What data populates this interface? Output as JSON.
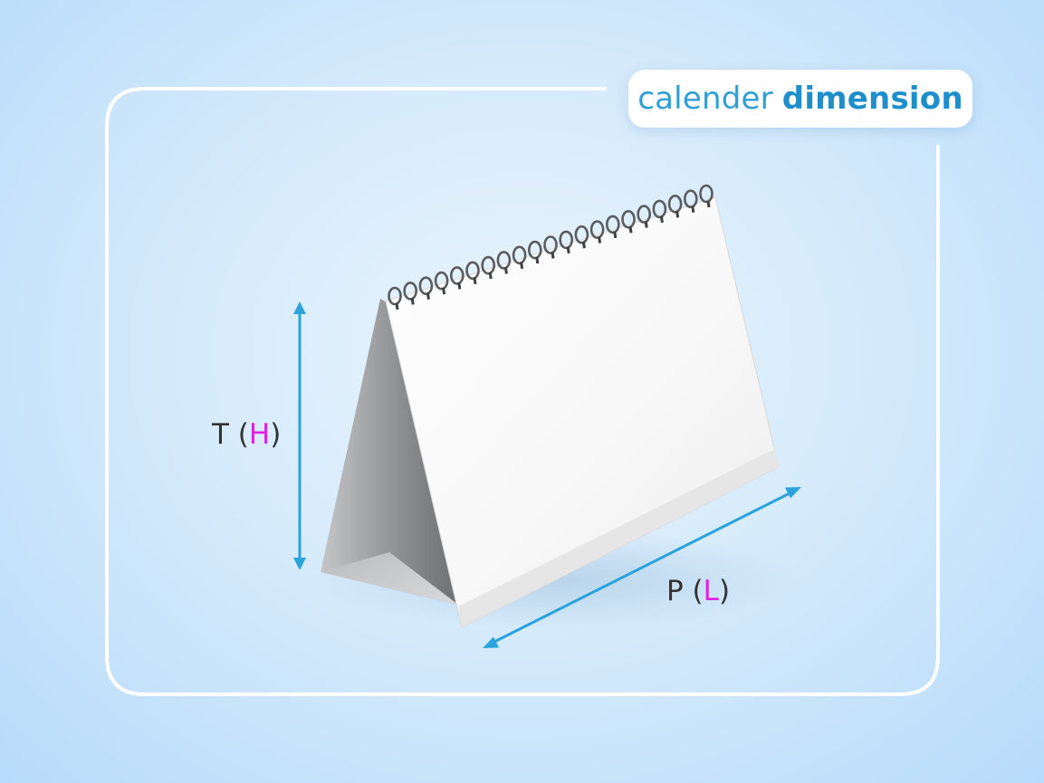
{
  "title": {
    "light": "calender",
    "bold": "dimension"
  },
  "dimensions": {
    "height": {
      "prefix": "T (",
      "letter": "H",
      "suffix": ")"
    },
    "length": {
      "prefix": "P (",
      "letter": "L",
      "suffix": ")"
    }
  },
  "colors": {
    "arrow": "#2aa3dc",
    "accent_letter": "#e21ee2",
    "frame": "#ffffff",
    "title_text": "#2f9fd6"
  },
  "icons": {
    "product": "desk-calendar-tent-icon"
  }
}
